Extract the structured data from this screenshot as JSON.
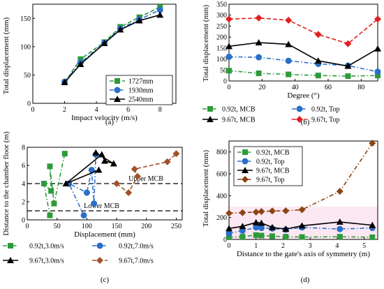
{
  "chart_data": [
    {
      "panel": "(a)",
      "type": "line",
      "xlabel": "Impact velocity (m/s)",
      "ylabel": "Total displacement (mm)",
      "xlim": [
        0,
        9
      ],
      "ylim": [
        0,
        175
      ],
      "xticks": [
        0,
        2,
        4,
        6,
        8
      ],
      "yticks": [
        0,
        50,
        100,
        150
      ],
      "legend_position": "bottom-right",
      "x": [
        2.0,
        3.0,
        4.5,
        5.5,
        6.7,
        8.0
      ],
      "series": [
        {
          "name": "1727mm",
          "color": "#2e9b3a",
          "dash": "dash",
          "marker": "square",
          "values": [
            37,
            78,
            108,
            135,
            152,
            170
          ]
        },
        {
          "name": "1930mm",
          "color": "#2a6fc9",
          "dash": "dashdot",
          "marker": "circle",
          "values": [
            38,
            72,
            107,
            132,
            148,
            165
          ]
        },
        {
          "name": "2540mm",
          "color": "#000000",
          "dash": "solid",
          "marker": "triangle",
          "values": [
            37,
            69,
            106,
            130,
            146,
            156
          ]
        }
      ]
    },
    {
      "panel": "(b)",
      "type": "line",
      "xlabel": "Degree (°)",
      "ylabel": "Total displacement (mm)",
      "xlim": [
        0,
        90
      ],
      "ylim": [
        0,
        350
      ],
      "xticks": [
        0,
        20,
        40,
        60,
        80
      ],
      "yticks": [
        0,
        50,
        100,
        150,
        200,
        250,
        300,
        350
      ],
      "legend_position": "bottom",
      "x": [
        0,
        18,
        36,
        54,
        72,
        90
      ],
      "series": [
        {
          "name": "0.92t, MCB",
          "color": "#2e9b3a",
          "dash": "dashdot",
          "marker": "square",
          "values": [
            47,
            35,
            30,
            25,
            22,
            25
          ]
        },
        {
          "name": "0.92t, Top",
          "color": "#2a6fc9",
          "dash": "dashdot",
          "marker": "circle",
          "values": [
            110,
            108,
            92,
            78,
            70,
            42
          ]
        },
        {
          "name": "9.67t, MCB",
          "color": "#000000",
          "dash": "solid",
          "marker": "triangle",
          "values": [
            158,
            175,
            167,
            92,
            68,
            147
          ]
        },
        {
          "name": "9.67t, Top",
          "color": "#e02020",
          "dash": "dash",
          "marker": "diamond",
          "values": [
            282,
            287,
            277,
            212,
            170,
            282
          ]
        }
      ]
    },
    {
      "panel": "(c)",
      "type": "line",
      "xlabel": "Displacement (mm)",
      "ylabel": "Distance to the chamber floor (m)",
      "xlim": [
        0,
        260
      ],
      "ylim": [
        0,
        8
      ],
      "xticks": [
        0,
        50,
        100,
        150,
        200,
        250
      ],
      "yticks": [
        0,
        2,
        4,
        6,
        8
      ],
      "legend_position": "bottom",
      "annotations": [
        {
          "text": "Upper MCB",
          "y": 4
        },
        {
          "text": "Lower MCB",
          "y": 1
        }
      ],
      "series": [
        {
          "name": "0.92t,3.0m/s",
          "color": "#2e9b3a",
          "dash": "dashdot",
          "marker": "square",
          "x": [
            38,
            28,
            40,
            38,
            45,
            63
          ],
          "y": [
            0.5,
            4.0,
            3.2,
            5.9,
            1.8,
            7.3
          ]
        },
        {
          "name": "0.92t,7.0m/s",
          "color": "#2a6fc9",
          "dash": "dashdot",
          "marker": "circle",
          "x": [
            95,
            70,
            100,
            108,
            112,
            115
          ],
          "y": [
            0.5,
            4.0,
            3.0,
            5.5,
            1.8,
            7.2
          ]
        },
        {
          "name": "9.67t,3.0m/s",
          "color": "#000000",
          "dash": "solid",
          "marker": "triangle",
          "x": [
            120,
            65,
            125,
            130,
            145,
            115
          ],
          "y": [
            5.5,
            4.0,
            7.2,
            6.5,
            6.2,
            7.4
          ]
        },
        {
          "name": "9.67t,7.0m/s",
          "color": "#a0522d",
          "dash": "dash",
          "marker": "diamond",
          "x": [
            150,
            170,
            185,
            180,
            235,
            250
          ],
          "y": [
            4.0,
            3.0,
            4.8,
            5.6,
            6.4,
            7.3
          ]
        }
      ]
    },
    {
      "panel": "(d)",
      "type": "line",
      "xlabel": "Distance to the gate's axis of symmetry (m)",
      "ylabel": "Total displacement (mm)",
      "xlim": [
        0,
        5.5
      ],
      "ylim": [
        0,
        900
      ],
      "xticks": [
        0,
        1,
        2,
        3,
        4,
        5
      ],
      "yticks": [
        0,
        200,
        400,
        600,
        800
      ],
      "legend_position": "top-left",
      "x": [
        0,
        0.5,
        1.0,
        1.2,
        1.6,
        2.1,
        2.7,
        4.1,
        5.3
      ],
      "series": [
        {
          "name": "0.92t, MCB",
          "color": "#2e9b3a",
          "dash": "dashdot",
          "marker": "square",
          "values": [
            20,
            25,
            40,
            35,
            30,
            25,
            22,
            25,
            20
          ]
        },
        {
          "name": "0.92t, Top",
          "color": "#2a6fc9",
          "dash": "dashdot",
          "marker": "circle",
          "values": [
            55,
            80,
            110,
            105,
            100,
            90,
            110,
            95,
            105
          ]
        },
        {
          "name": "9.67t, MCB",
          "color": "#000000",
          "dash": "solid",
          "marker": "triangle",
          "values": [
            100,
            120,
            155,
            150,
            110,
            95,
            125,
            160,
            130
          ]
        },
        {
          "name": "9.67t, Top",
          "color": "#8b4513",
          "dash": "dashdot",
          "marker": "diamond",
          "values": [
            240,
            245,
            250,
            255,
            260,
            262,
            272,
            440,
            880
          ]
        }
      ]
    }
  ]
}
